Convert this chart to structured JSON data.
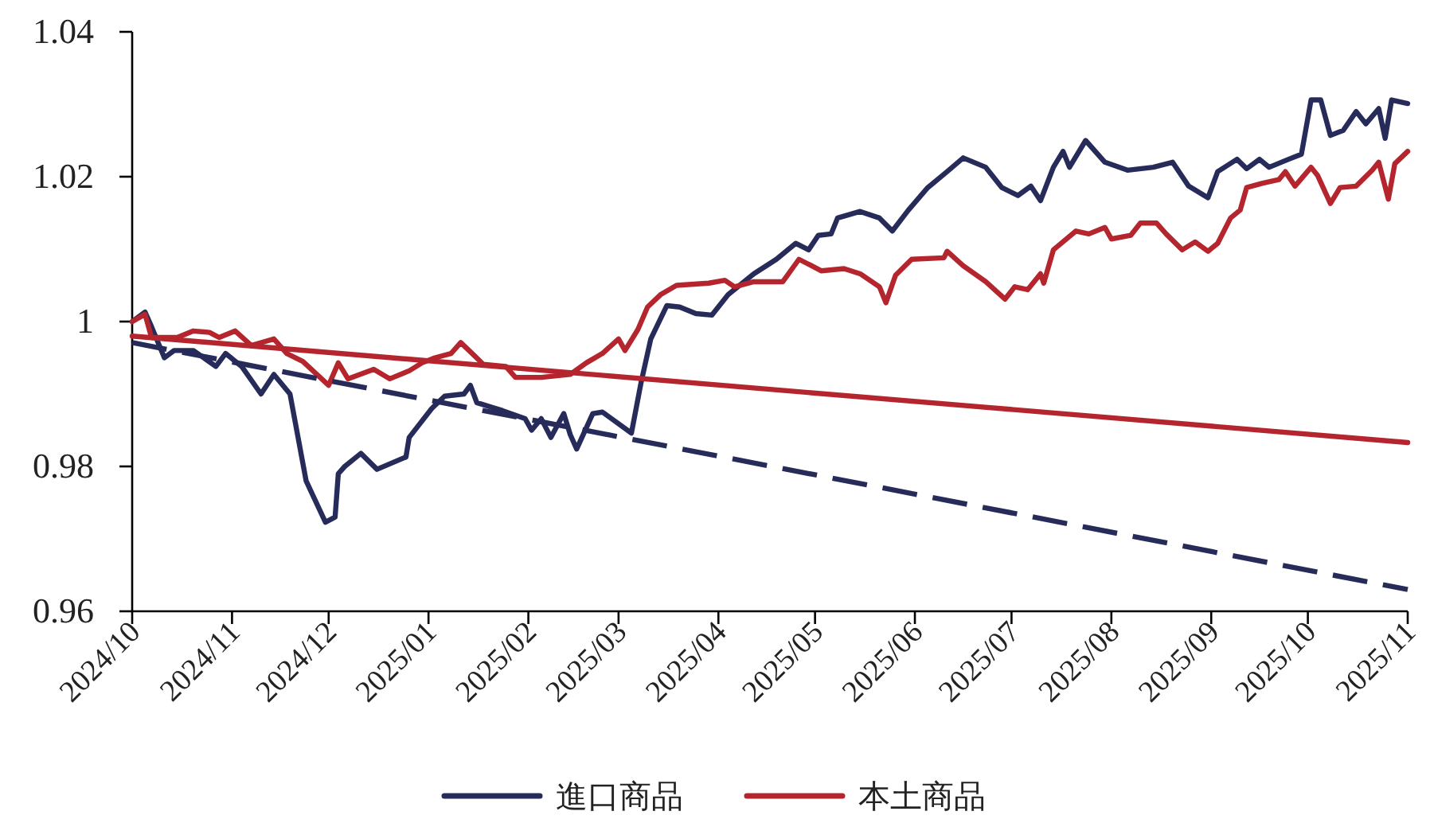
{
  "chart_data": {
    "type": "line",
    "legend": "bottom",
    "xlim": [
      "2024-10-01",
      "2025-11-01"
    ],
    "xticks": [
      {
        "value": "2024-10-01",
        "label": "2024/10"
      },
      {
        "value": "2024-11-01",
        "label": "2024/11"
      },
      {
        "value": "2024-12-01",
        "label": "2024/12"
      },
      {
        "value": "2025-01-01",
        "label": "2025/01"
      },
      {
        "value": "2025-02-01",
        "label": "2025/02"
      },
      {
        "value": "2025-03-01",
        "label": "2025/03"
      },
      {
        "value": "2025-04-01",
        "label": "2025/04"
      },
      {
        "value": "2025-05-01",
        "label": "2025/05"
      },
      {
        "value": "2025-06-01",
        "label": "2025/06"
      },
      {
        "value": "2025-07-01",
        "label": "2025/07"
      },
      {
        "value": "2025-08-01",
        "label": "2025/08"
      },
      {
        "value": "2025-09-01",
        "label": "2025/09"
      },
      {
        "value": "2025-10-01",
        "label": "2025/10"
      },
      {
        "value": "2025-11-01",
        "label": "2025/11"
      }
    ],
    "ylim": [
      0.96,
      1.04
    ],
    "yticks": [
      0.96,
      0.98,
      {
        "value": 1,
        "label": "1"
      },
      1.02,
      1.04
    ],
    "series": [
      {
        "name": "進口商品",
        "color": "#262b5a",
        "x": [
          "2024-10-01",
          "2024-10-05",
          "2024-10-07",
          "2024-10-11",
          "2024-10-14",
          "2024-10-20",
          "2024-10-27",
          "2024-10-30",
          "2024-11-04",
          "2024-11-10",
          "2024-11-14",
          "2024-11-19",
          "2024-11-24",
          "2024-11-30",
          "2024-12-03",
          "2024-12-04",
          "2024-12-06",
          "2024-12-11",
          "2024-12-16",
          "2024-12-25",
          "2024-12-26",
          "2025-01-02",
          "2025-01-06",
          "2025-01-12",
          "2025-01-14",
          "2025-01-16",
          "2025-01-24",
          "2025-01-31",
          "2025-02-02",
          "2025-02-05",
          "2025-02-08",
          "2025-02-12",
          "2025-02-14",
          "2025-02-16",
          "2025-02-21",
          "2025-02-24",
          "2025-03-05",
          "2025-03-08",
          "2025-03-11",
          "2025-03-16",
          "2025-03-20",
          "2025-03-25",
          "2025-03-30",
          "2025-04-04",
          "2025-04-12",
          "2025-04-19",
          "2025-04-25",
          "2025-04-29",
          "2025-05-02",
          "2025-05-06",
          "2025-05-08",
          "2025-05-15",
          "2025-05-21",
          "2025-05-25",
          "2025-05-30",
          "2025-06-05",
          "2025-06-11",
          "2025-06-16",
          "2025-06-23",
          "2025-06-28",
          "2025-07-03",
          "2025-07-07",
          "2025-07-10",
          "2025-07-14",
          "2025-07-17",
          "2025-07-19",
          "2025-07-24",
          "2025-07-30",
          "2025-08-06",
          "2025-08-14",
          "2025-08-20",
          "2025-08-25",
          "2025-08-31",
          "2025-09-03",
          "2025-09-09",
          "2025-09-12",
          "2025-09-16",
          "2025-09-19",
          "2025-09-25",
          "2025-09-29",
          "2025-10-02",
          "2025-10-05",
          "2025-10-08",
          "2025-10-12",
          "2025-10-16",
          "2025-10-19",
          "2025-10-23",
          "2025-10-25",
          "2025-10-27",
          "2025-11-01"
        ],
        "values": [
          1.0,
          1.0013,
          0.9993,
          0.995,
          0.996,
          0.996,
          0.9938,
          0.9956,
          0.9938,
          0.99,
          0.9927,
          0.99,
          0.978,
          0.9723,
          0.973,
          0.979,
          0.98,
          0.9818,
          0.9796,
          0.9813,
          0.984,
          0.988,
          0.9897,
          0.99,
          0.9912,
          0.9888,
          0.9877,
          0.9866,
          0.985,
          0.9866,
          0.984,
          0.9873,
          0.9844,
          0.9824,
          0.9873,
          0.9875,
          0.9846,
          0.9916,
          0.9976,
          1.0022,
          1.002,
          1.0011,
          1.0009,
          1.0037,
          1.0066,
          1.0086,
          1.0108,
          1.0099,
          1.0119,
          1.0121,
          1.0143,
          1.0152,
          1.0143,
          1.0125,
          1.0154,
          1.0185,
          1.0207,
          1.0226,
          1.0213,
          1.0185,
          1.0174,
          1.0187,
          1.0167,
          1.0213,
          1.0235,
          1.0213,
          1.025,
          1.022,
          1.0209,
          1.0213,
          1.022,
          1.0187,
          1.0171,
          1.0207,
          1.0224,
          1.0211,
          1.0224,
          1.0213,
          1.0224,
          1.0231,
          1.0306,
          1.0306,
          1.0257,
          1.0264,
          1.029,
          1.0273,
          1.0294,
          1.0253,
          1.0306,
          1.0301
        ]
      },
      {
        "name": "本土商品",
        "color": "#b5252e",
        "x": [
          "2024-10-01",
          "2024-10-05",
          "2024-10-07",
          "2024-10-15",
          "2024-10-20",
          "2024-10-25",
          "2024-10-28",
          "2024-11-02",
          "2024-11-07",
          "2024-11-14",
          "2024-11-18",
          "2024-11-23",
          "2024-12-01",
          "2024-12-04",
          "2024-12-07",
          "2024-12-15",
          "2024-12-20",
          "2024-12-26",
          "2024-12-30",
          "2025-01-03",
          "2025-01-08",
          "2025-01-11",
          "2025-01-15",
          "2025-01-18",
          "2025-01-25",
          "2025-01-28",
          "2025-02-05",
          "2025-02-14",
          "2025-02-19",
          "2025-02-24",
          "2025-03-01",
          "2025-03-03",
          "2025-03-07",
          "2025-03-10",
          "2025-03-14",
          "2025-03-19",
          "2025-03-29",
          "2025-04-03",
          "2025-04-06",
          "2025-04-12",
          "2025-04-21",
          "2025-04-26",
          "2025-05-03",
          "2025-05-10",
          "2025-05-15",
          "2025-05-21",
          "2025-05-23",
          "2025-05-26",
          "2025-05-31",
          "2025-06-10",
          "2025-06-11",
          "2025-06-16",
          "2025-06-23",
          "2025-06-29",
          "2025-07-02",
          "2025-07-06",
          "2025-07-10",
          "2025-07-11",
          "2025-07-14",
          "2025-07-21",
          "2025-07-25",
          "2025-07-30",
          "2025-08-01",
          "2025-08-07",
          "2025-08-10",
          "2025-08-15",
          "2025-08-18",
          "2025-08-23",
          "2025-08-27",
          "2025-08-31",
          "2025-09-03",
          "2025-09-07",
          "2025-09-10",
          "2025-09-12",
          "2025-09-17",
          "2025-09-22",
          "2025-09-24",
          "2025-09-27",
          "2025-10-02",
          "2025-10-04",
          "2025-10-08",
          "2025-10-11",
          "2025-10-16",
          "2025-10-21",
          "2025-10-23",
          "2025-10-26",
          "2025-10-28",
          "2025-11-01"
        ],
        "values": [
          1.0,
          1.001,
          0.9978,
          0.9978,
          0.9987,
          0.9985,
          0.9978,
          0.9987,
          0.9967,
          0.9976,
          0.9956,
          0.9945,
          0.9912,
          0.9943,
          0.9921,
          0.9934,
          0.9921,
          0.9932,
          0.9943,
          0.995,
          0.9956,
          0.9971,
          0.9954,
          0.9941,
          0.9938,
          0.9923,
          0.9923,
          0.9927,
          0.9943,
          0.9956,
          0.9976,
          0.996,
          0.9989,
          1.002,
          1.0037,
          1.005,
          1.0053,
          1.0057,
          1.0048,
          1.0055,
          1.0055,
          1.0086,
          1.007,
          1.0073,
          1.0066,
          1.0048,
          1.0026,
          1.0064,
          1.0086,
          1.0088,
          1.0097,
          1.0077,
          1.0055,
          1.0031,
          1.0048,
          1.0044,
          1.0066,
          1.0053,
          1.0099,
          1.0125,
          1.0121,
          1.013,
          1.0114,
          1.0119,
          1.0136,
          1.0136,
          1.0121,
          1.0099,
          1.011,
          1.0097,
          1.0108,
          1.0143,
          1.0154,
          1.0185,
          1.0191,
          1.0196,
          1.0207,
          1.0187,
          1.0213,
          1.0202,
          1.0163,
          1.0185,
          1.0187,
          1.0209,
          1.022,
          1.0169,
          1.0218,
          1.0235
        ]
      },
      {
        "color": "#262b5a",
        "line_style": "dashed",
        "x": [
          "2024-10-01",
          "2025-11-01"
        ],
        "values": [
          0.9971,
          0.963
        ]
      },
      {
        "color": "#b5252e",
        "line_style": "solid",
        "x": [
          "2024-10-01",
          "2025-11-01"
        ],
        "values": [
          0.998,
          0.9833
        ]
      }
    ]
  }
}
